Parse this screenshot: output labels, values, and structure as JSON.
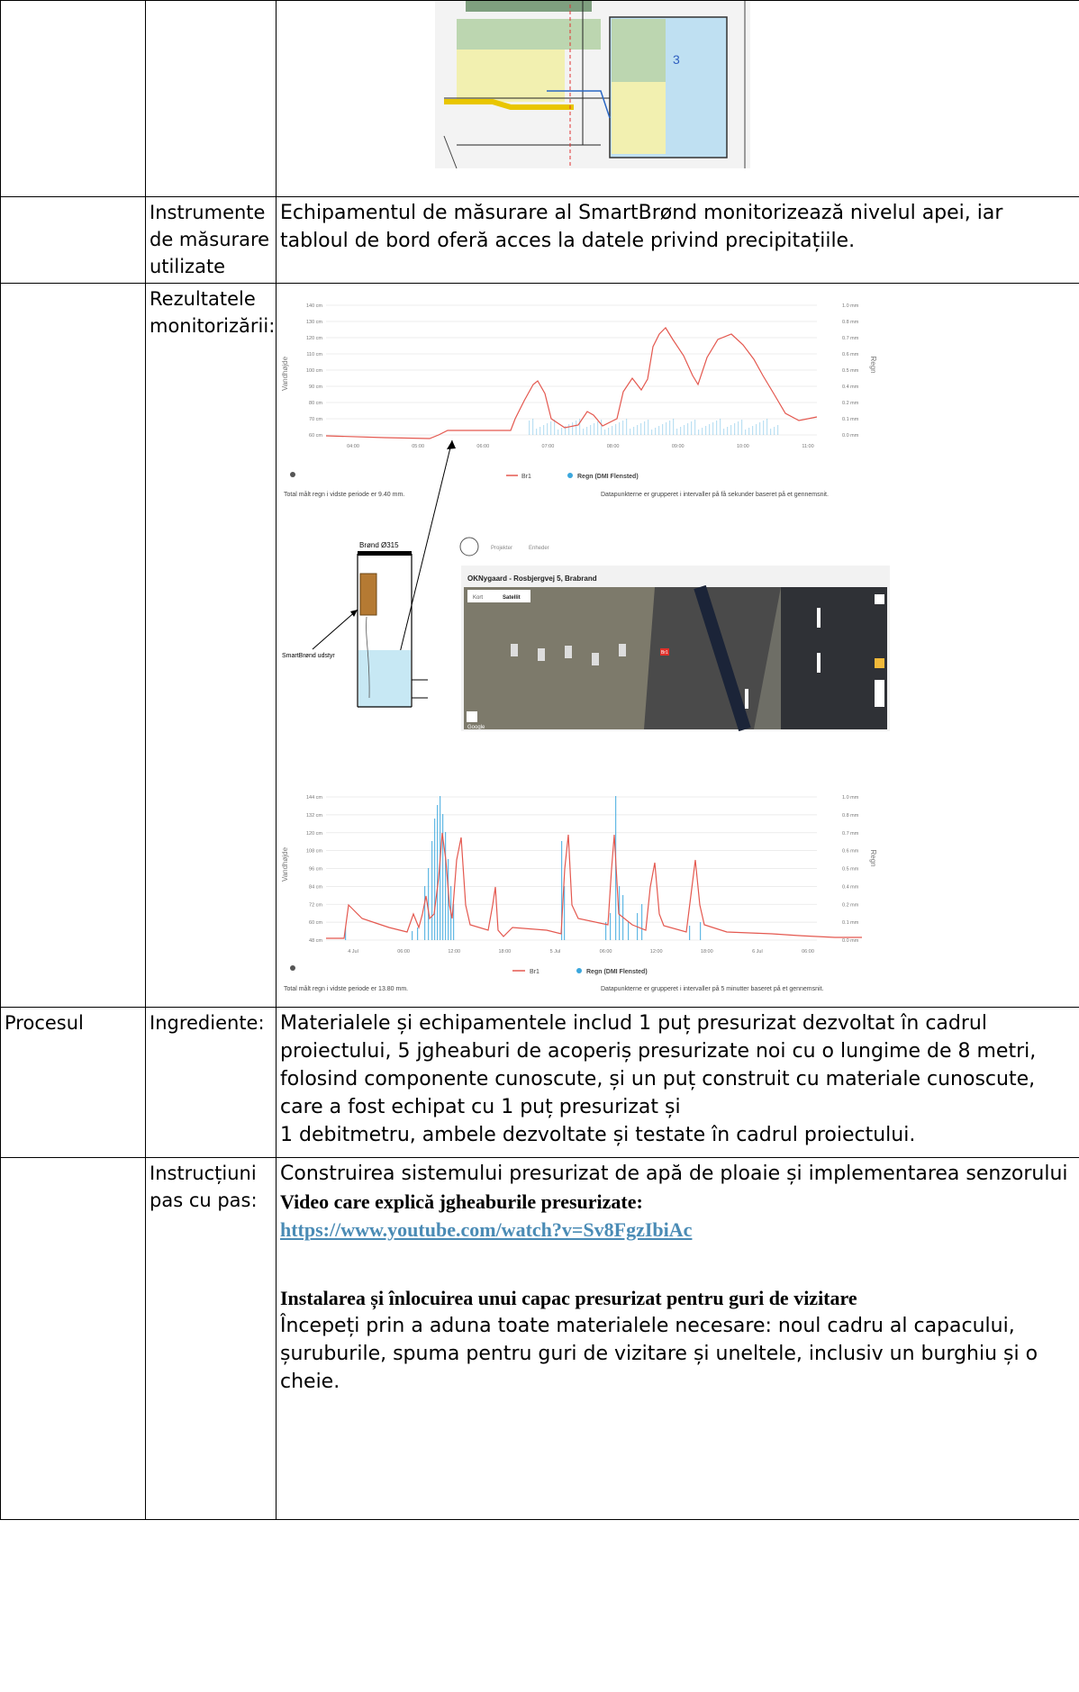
{
  "rows": {
    "instruments": {
      "label": "Instrumente de măsurare utilizate",
      "text": "Echipamentul de măsurare al SmartBrønd monitorizează nivelul apei, iar tabloul de bord oferă acces la datele privind precipitațiile."
    },
    "results": {
      "label": "Rezultatele monitorizării:"
    },
    "process": {
      "label": "Procesul",
      "ingredients_label": "Ingrediente:",
      "ingredients_text_1": "Materialele și echipamentele includ 1 puț presurizat dezvoltat în cadrul proiectului, 5 jgheaburi de acoperiș presurizate noi cu o lungime de 8 metri, folosind componente cunoscute, și un puț construit cu materiale cunoscute, care a fost echipat cu 1 puț presurizat și",
      "ingredients_text_2": "1 debitmetru, ambele dezvoltate și testate în cadrul proiectului.",
      "steps_label": "Instrucțiuni pas cu pas:",
      "steps_intro": "Construirea sistemului presurizat de apă de ploaie și implementarea senzorului",
      "video_heading": "Video care explică jgheaburile presurizate:",
      "video_link": "https://www.youtube.com/watch?v=Sv8FgzIbiAc",
      "install_heading": "Instalarea și înlocuirea unui capac presurizat pentru guri de vizitare",
      "install_text": "Începeți prin a aduna toate materialele necesare: noul cadru al capacului, șuruburile, spuma pentru guri de vizitare și uneltele, inclusiv un burghiu și o cheie."
    }
  },
  "chart_top": {
    "yleft": [
      "140 cm",
      "130 cm",
      "120 cm",
      "110 cm",
      "100 cm",
      "90 cm",
      "80 cm",
      "70 cm",
      "60 cm"
    ],
    "yright": [
      "1.0 mm",
      "0.8 mm",
      "0.7 mm",
      "0.6 mm",
      "0.5 mm",
      "0.4 mm",
      "0.2 mm",
      "0.1 mm",
      "0.0 mm"
    ],
    "xticks": [
      "04:00",
      "05:00",
      "06:00",
      "07:00",
      "08:00",
      "09:00",
      "10:00",
      "11:00"
    ],
    "ylabel": "Vandhøjde",
    "y2label": "Regn",
    "legend_line": "Br1",
    "legend_bar": "Regn (DMI Flensted)",
    "total": "Total målt regn i vidste periode er 9.40 mm.",
    "note": "Datapunkterne er grupperet i intervaller på få sekunder baseret på et gennemsnit."
  },
  "diagram": {
    "title": "Brønd Ø315",
    "label": "SmartBrønd udstyr"
  },
  "map": {
    "nav_1": "Projekter",
    "nav_2": "Enheder",
    "title": "OKNygaard - Rosbjergvej 5, Brabrand",
    "tab_map": "Kort",
    "tab_sat": "Satellit",
    "marker": "Br1",
    "brand": "Google"
  },
  "chart_bottom": {
    "yleft": [
      "144 cm",
      "132 cm",
      "120 cm",
      "108 cm",
      "96 cm",
      "84 cm",
      "72 cm",
      "60 cm",
      "48 cm"
    ],
    "yright": [
      "1.0 mm",
      "0.8 mm",
      "0.7 mm",
      "0.6 mm",
      "0.5 mm",
      "0.4 mm",
      "0.2 mm",
      "0.1 mm",
      "0.0 mm"
    ],
    "xticks": [
      "4 Jul",
      "06:00",
      "12:00",
      "18:00",
      "5 Jul",
      "06:00",
      "12:00",
      "18:00",
      "6 Jul",
      "06:00"
    ],
    "ylabel": "Vandhøjde",
    "y2label": "Regn",
    "legend_line": "Br1",
    "legend_bar": "Regn (DMI Flensted)",
    "total": "Total målt regn i vidste periode er 13.80 mm.",
    "note": "Datapunkterne er grupperet i intervaller på 5 minutter baseret på et gennemsnit."
  },
  "colors": {
    "line": "#e4584f",
    "bar": "#3ba7dd",
    "link": "#4a8bb5"
  }
}
